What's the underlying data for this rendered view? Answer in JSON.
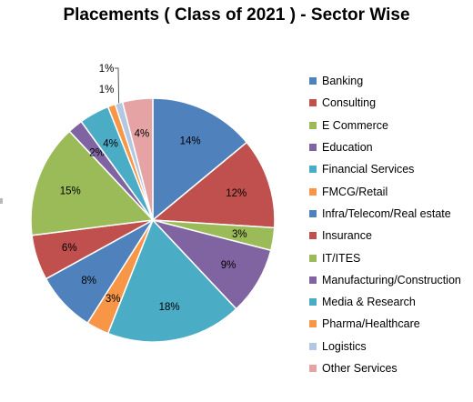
{
  "chart_data": {
    "type": "pie",
    "title": "Placements ( Class of 2021 ) - Sector Wise",
    "legend_position": "right",
    "slices": [
      {
        "name": "Banking",
        "value": 14,
        "label": "14%",
        "color": "#4f81bd"
      },
      {
        "name": "Consulting",
        "value": 12,
        "label": "12%",
        "color": "#c0504d"
      },
      {
        "name": "E Commerce",
        "value": 3,
        "label": "3%",
        "color": "#9bbb59"
      },
      {
        "name": "Education",
        "value": 9,
        "label": "9%",
        "color": "#8064a2"
      },
      {
        "name": "Financial Services",
        "value": 18,
        "label": "18%",
        "color": "#4bacc6"
      },
      {
        "name": "FMCG/Retail",
        "value": 3,
        "label": "3%",
        "color": "#f79646"
      },
      {
        "name": "Infra/Telecom/Real estate",
        "value": 8,
        "label": "8%",
        "color": "#4f81bd"
      },
      {
        "name": "Insurance",
        "value": 6,
        "label": "6%",
        "color": "#c0504d"
      },
      {
        "name": "IT/ITES",
        "value": 15,
        "label": "15%",
        "color": "#9bbb59"
      },
      {
        "name": "Manufacturing/Construction",
        "value": 2,
        "label": "2%",
        "color": "#8064a2"
      },
      {
        "name": "Media & Research",
        "value": 4,
        "label": "4%",
        "color": "#4bacc6"
      },
      {
        "name": "Pharma/Healthcare",
        "value": 1,
        "label": "1%",
        "color": "#f79646"
      },
      {
        "name": "Logistics",
        "value": 1,
        "label": "1%",
        "color": "#b3c6e2"
      },
      {
        "name": "Other Services",
        "value": 4,
        "label": "4%",
        "color": "#e6a3a3"
      }
    ]
  }
}
